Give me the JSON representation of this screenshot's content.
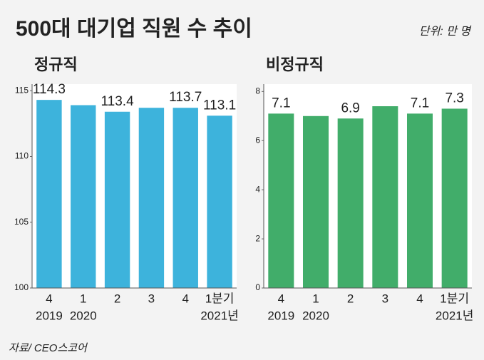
{
  "title": "500대 대기업 직원 수 추이",
  "unit": "단위: 만 명",
  "source": "자료/ CEO스코어",
  "chart_data": [
    {
      "type": "bar",
      "title": "정규직",
      "color": "#3db3dc",
      "title_color": "#2aa7d6",
      "categories": [
        "4",
        "1",
        "2",
        "3",
        "4",
        "1분기"
      ],
      "years": [
        "2019",
        "2020",
        null,
        null,
        null,
        "2021년"
      ],
      "values": [
        114.3,
        113.9,
        113.4,
        113.7,
        113.7,
        113.1
      ],
      "value_labels": [
        "114.3",
        null,
        "113.4",
        null,
        "113.7",
        "113.1"
      ],
      "ylim": [
        100,
        115.5
      ],
      "yticks": [
        100,
        105,
        110,
        115
      ]
    },
    {
      "type": "bar",
      "title": "비정규직",
      "color": "#41ad6a",
      "title_color": "#2f9e58",
      "categories": [
        "4",
        "1",
        "2",
        "3",
        "4",
        "1분기"
      ],
      "years": [
        "2019",
        "2020",
        null,
        null,
        null,
        "2021년"
      ],
      "values": [
        7.1,
        7.0,
        6.9,
        7.4,
        7.1,
        7.3
      ],
      "value_labels": [
        "7.1",
        null,
        "6.9",
        null,
        "7.1",
        "7.3"
      ],
      "ylim": [
        0,
        8.3
      ],
      "yticks": [
        0,
        2,
        4,
        6,
        8
      ]
    }
  ]
}
